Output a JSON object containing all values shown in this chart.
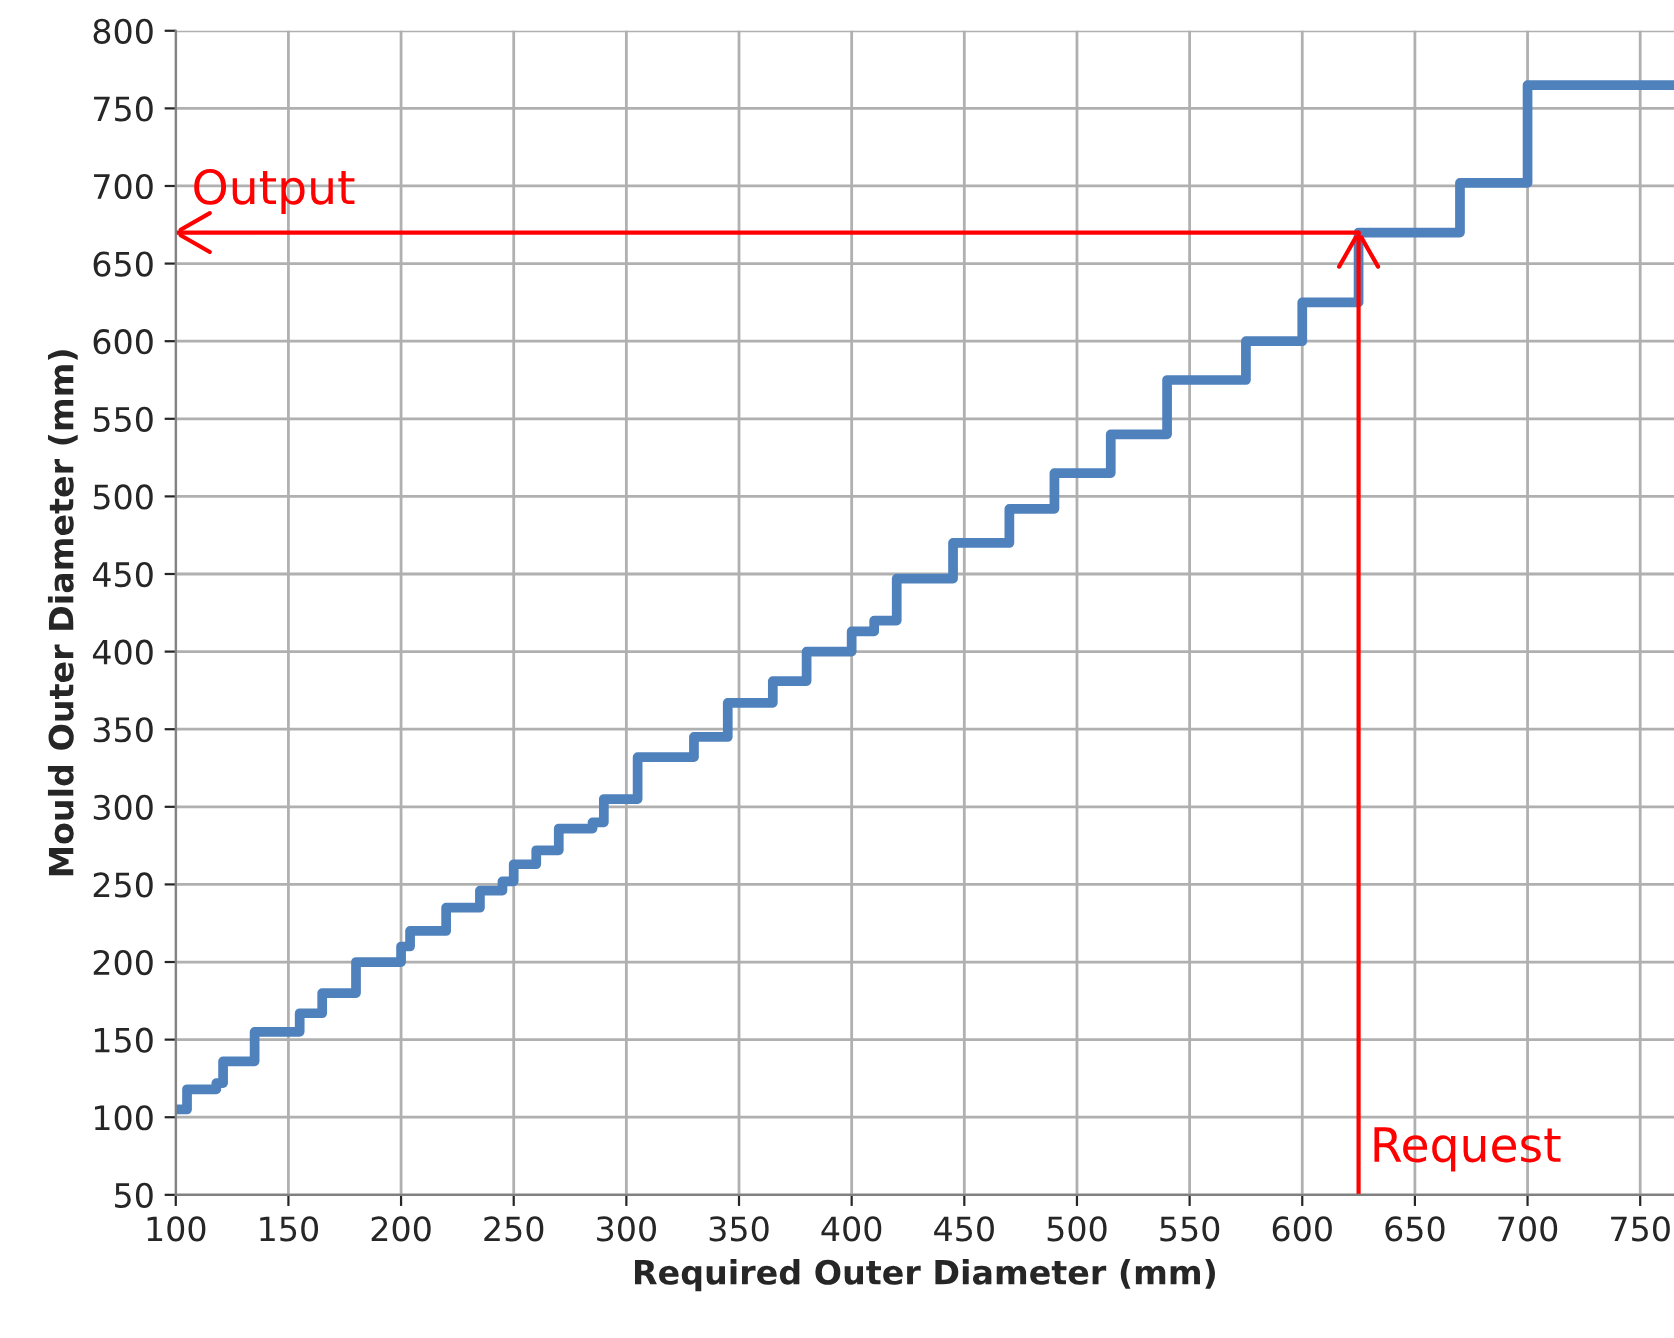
{
  "chart_data": {
    "type": "step",
    "xlabel": "Required Outer Diameter (mm)",
    "ylabel": "Mould Outer Diameter (mm)",
    "x": [
      100,
      105,
      118,
      121,
      135,
      155,
      165,
      180,
      200,
      204,
      220,
      235,
      245,
      250,
      260,
      270,
      285,
      290,
      305,
      330,
      345,
      365,
      380,
      400,
      410,
      420,
      445,
      470,
      490,
      515,
      540,
      575,
      600,
      625,
      670,
      700,
      765
    ],
    "series": [
      {
        "color": "#4f81bd",
        "values": [
          105,
          118,
          122,
          136,
          155,
          167,
          180,
          200,
          210,
          220,
          235,
          246,
          252,
          263,
          272,
          286,
          290,
          305,
          332,
          345,
          367,
          381,
          400,
          413,
          420,
          447,
          470,
          492,
          515,
          540,
          575,
          600,
          625,
          670,
          702,
          765,
          765
        ]
      }
    ],
    "xlim": [
      100,
      765
    ],
    "xticks": [
      100,
      150,
      200,
      250,
      300,
      350,
      400,
      450,
      500,
      550,
      600,
      650,
      700,
      750
    ],
    "ylim": [
      50,
      800
    ],
    "yticks": [
      50,
      100,
      150,
      200,
      250,
      300,
      350,
      400,
      450,
      500,
      550,
      600,
      650,
      700,
      750,
      800
    ],
    "grid": true,
    "ref_lines": [
      {
        "axis": "x",
        "value": 625,
        "label": "Request",
        "color": "#ff0000"
      },
      {
        "axis": "y",
        "value": 670,
        "label": "Output",
        "color": "#ff0000"
      }
    ]
  }
}
